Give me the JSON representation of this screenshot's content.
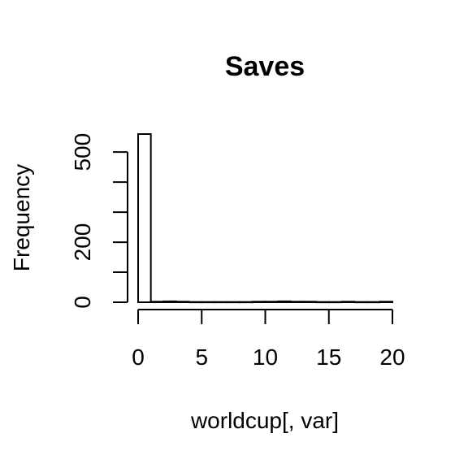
{
  "chart_data": {
    "type": "bar",
    "title": "Saves",
    "xlabel": "worldcup[, var]",
    "ylabel": "Frequency",
    "x_bins": [
      [
        0,
        1
      ],
      [
        1,
        2
      ],
      [
        2,
        3
      ],
      [
        3,
        4
      ],
      [
        4,
        5
      ],
      [
        5,
        6
      ],
      [
        6,
        7
      ],
      [
        7,
        8
      ],
      [
        8,
        9
      ],
      [
        9,
        10
      ],
      [
        10,
        11
      ],
      [
        11,
        12
      ],
      [
        12,
        13
      ],
      [
        13,
        14
      ],
      [
        14,
        15
      ],
      [
        15,
        16
      ],
      [
        16,
        17
      ],
      [
        17,
        18
      ],
      [
        18,
        19
      ],
      [
        19,
        20
      ]
    ],
    "values": [
      560,
      2,
      3,
      2,
      1,
      1,
      1,
      1,
      1,
      2,
      2,
      3,
      2,
      2,
      1,
      1,
      2,
      1,
      1,
      2
    ],
    "xlim": [
      0,
      20
    ],
    "ylim": [
      0,
      560
    ],
    "x_ticks": [
      0,
      5,
      10,
      15,
      20
    ],
    "x_tick_labels": [
      "0",
      "5",
      "10",
      "15",
      "20"
    ],
    "y_ticks": [
      0,
      100,
      200,
      300,
      400,
      500
    ],
    "y_tick_labels": [
      "0",
      "",
      "200",
      "",
      "",
      "500"
    ],
    "grid": false,
    "legend": "none"
  }
}
